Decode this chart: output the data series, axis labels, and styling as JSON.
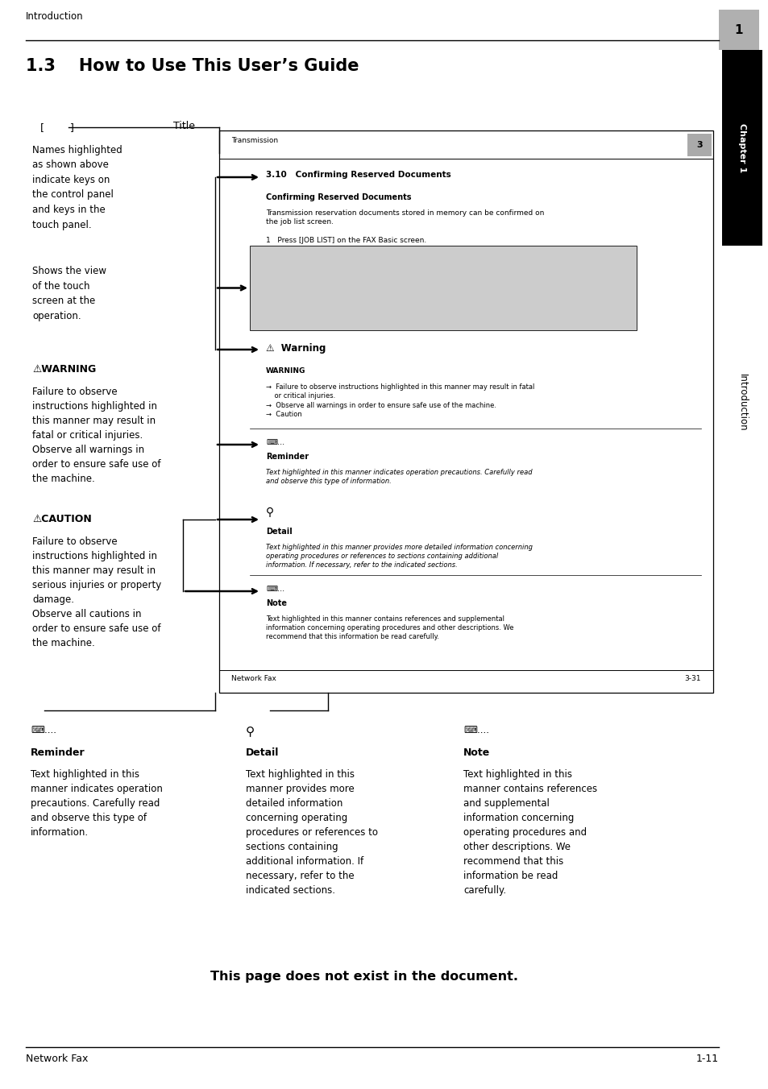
{
  "page_width": 9.54,
  "page_height": 13.52,
  "bg_color": "#ffffff",
  "header_text": "Introduction",
  "footer_left": "Network Fax",
  "footer_right": "1-11",
  "title": "1.3    How to Use This User’s Guide",
  "bracket_label": "[        ]",
  "title_label": "Title",
  "names_highlighted_text": "Names highlighted\nas shown above\nindicate keys on\nthe control panel\nand keys in the\ntouch panel.",
  "shows_view_text": "Shows the view\nof the touch\nscreen at the\noperation.",
  "warning_heading": "⚠WARNING",
  "warning_body": "Failure to observe\ninstructions highlighted in\nthis manner may result in\nfatal or critical injuries.\nObserve all warnings in\norder to ensure safe use of\nthe machine.",
  "caution_heading": "⚠CAUTION",
  "caution_body": "Failure to observe\ninstructions highlighted in\nthis manner may result in\nserious injuries or property\ndamage.\nObserve all cautions in\norder to ensure safe use of\nthe machine.",
  "reminder_icon": "⌨....",
  "reminder_heading": "Reminder",
  "reminder_body": "Text highlighted in this\nmanner indicates operation\nprecautions. Carefully read\nand observe this type of\ninformation.",
  "detail_heading": "Detail",
  "detail_body": "Text highlighted in this\nmanner provides more\ndetailed information\nconcerning operating\nprocedures or references to\nsections containing\nadditional information. If\nnecessary, refer to the\nindicated sections.",
  "note_icon": "⌨....",
  "note_heading": "Note",
  "note_body": "Text highlighted in this\nmanner contains references\nand supplemental\ninformation concerning\noperating procedures and\nother descriptions. We\nrecommend that this\ninformation be read\ncarefully.",
  "bottom_notice": "This page does not exist in the document.",
  "inner_box_title": "Transmission",
  "inner_box_num": "3",
  "inner_section": "3.10   Confirming Reserved Documents",
  "inner_confirming_text": "Confirming Reserved Documents",
  "inner_body1": "Transmission reservation documents stored in memory can be confirmed on\nthe job list screen.",
  "inner_press": "1   Press [JOB LIST] on the FAX Basic screen.",
  "inner_warning_title": "⚠  Warning",
  "inner_warning_label": "WARNING",
  "inner_warning_body": "→  Failure to observe instructions highlighted in this manner may result in fatal\n    or critical injuries.\n→  Observe all warnings in order to ensure safe use of the machine.\n→  Caution",
  "inner_reminder_icon": "⌨...",
  "inner_reminder_title": "Reminder",
  "inner_reminder_body": "Text highlighted in this manner indicates operation precautions. Carefully read\nand observe this type of information.",
  "inner_detail_title": "Detail",
  "inner_detail_body": "Text highlighted in this manner provides more detailed information concerning\noperating procedures or references to sections containing additional\ninformation. If necessary, refer to the indicated sections.",
  "inner_note_icon": "⌨...",
  "inner_note_title": "Note",
  "inner_note_body": "Text highlighted in this manner contains references and supplemental\ninformation concerning operating procedures and other descriptions. We\nrecommend that this information be read carefully.",
  "inner_footer_left": "Network Fax",
  "inner_footer_right": "3-31",
  "chapter_text": "Chapter 1",
  "intro_text": "Introduction"
}
